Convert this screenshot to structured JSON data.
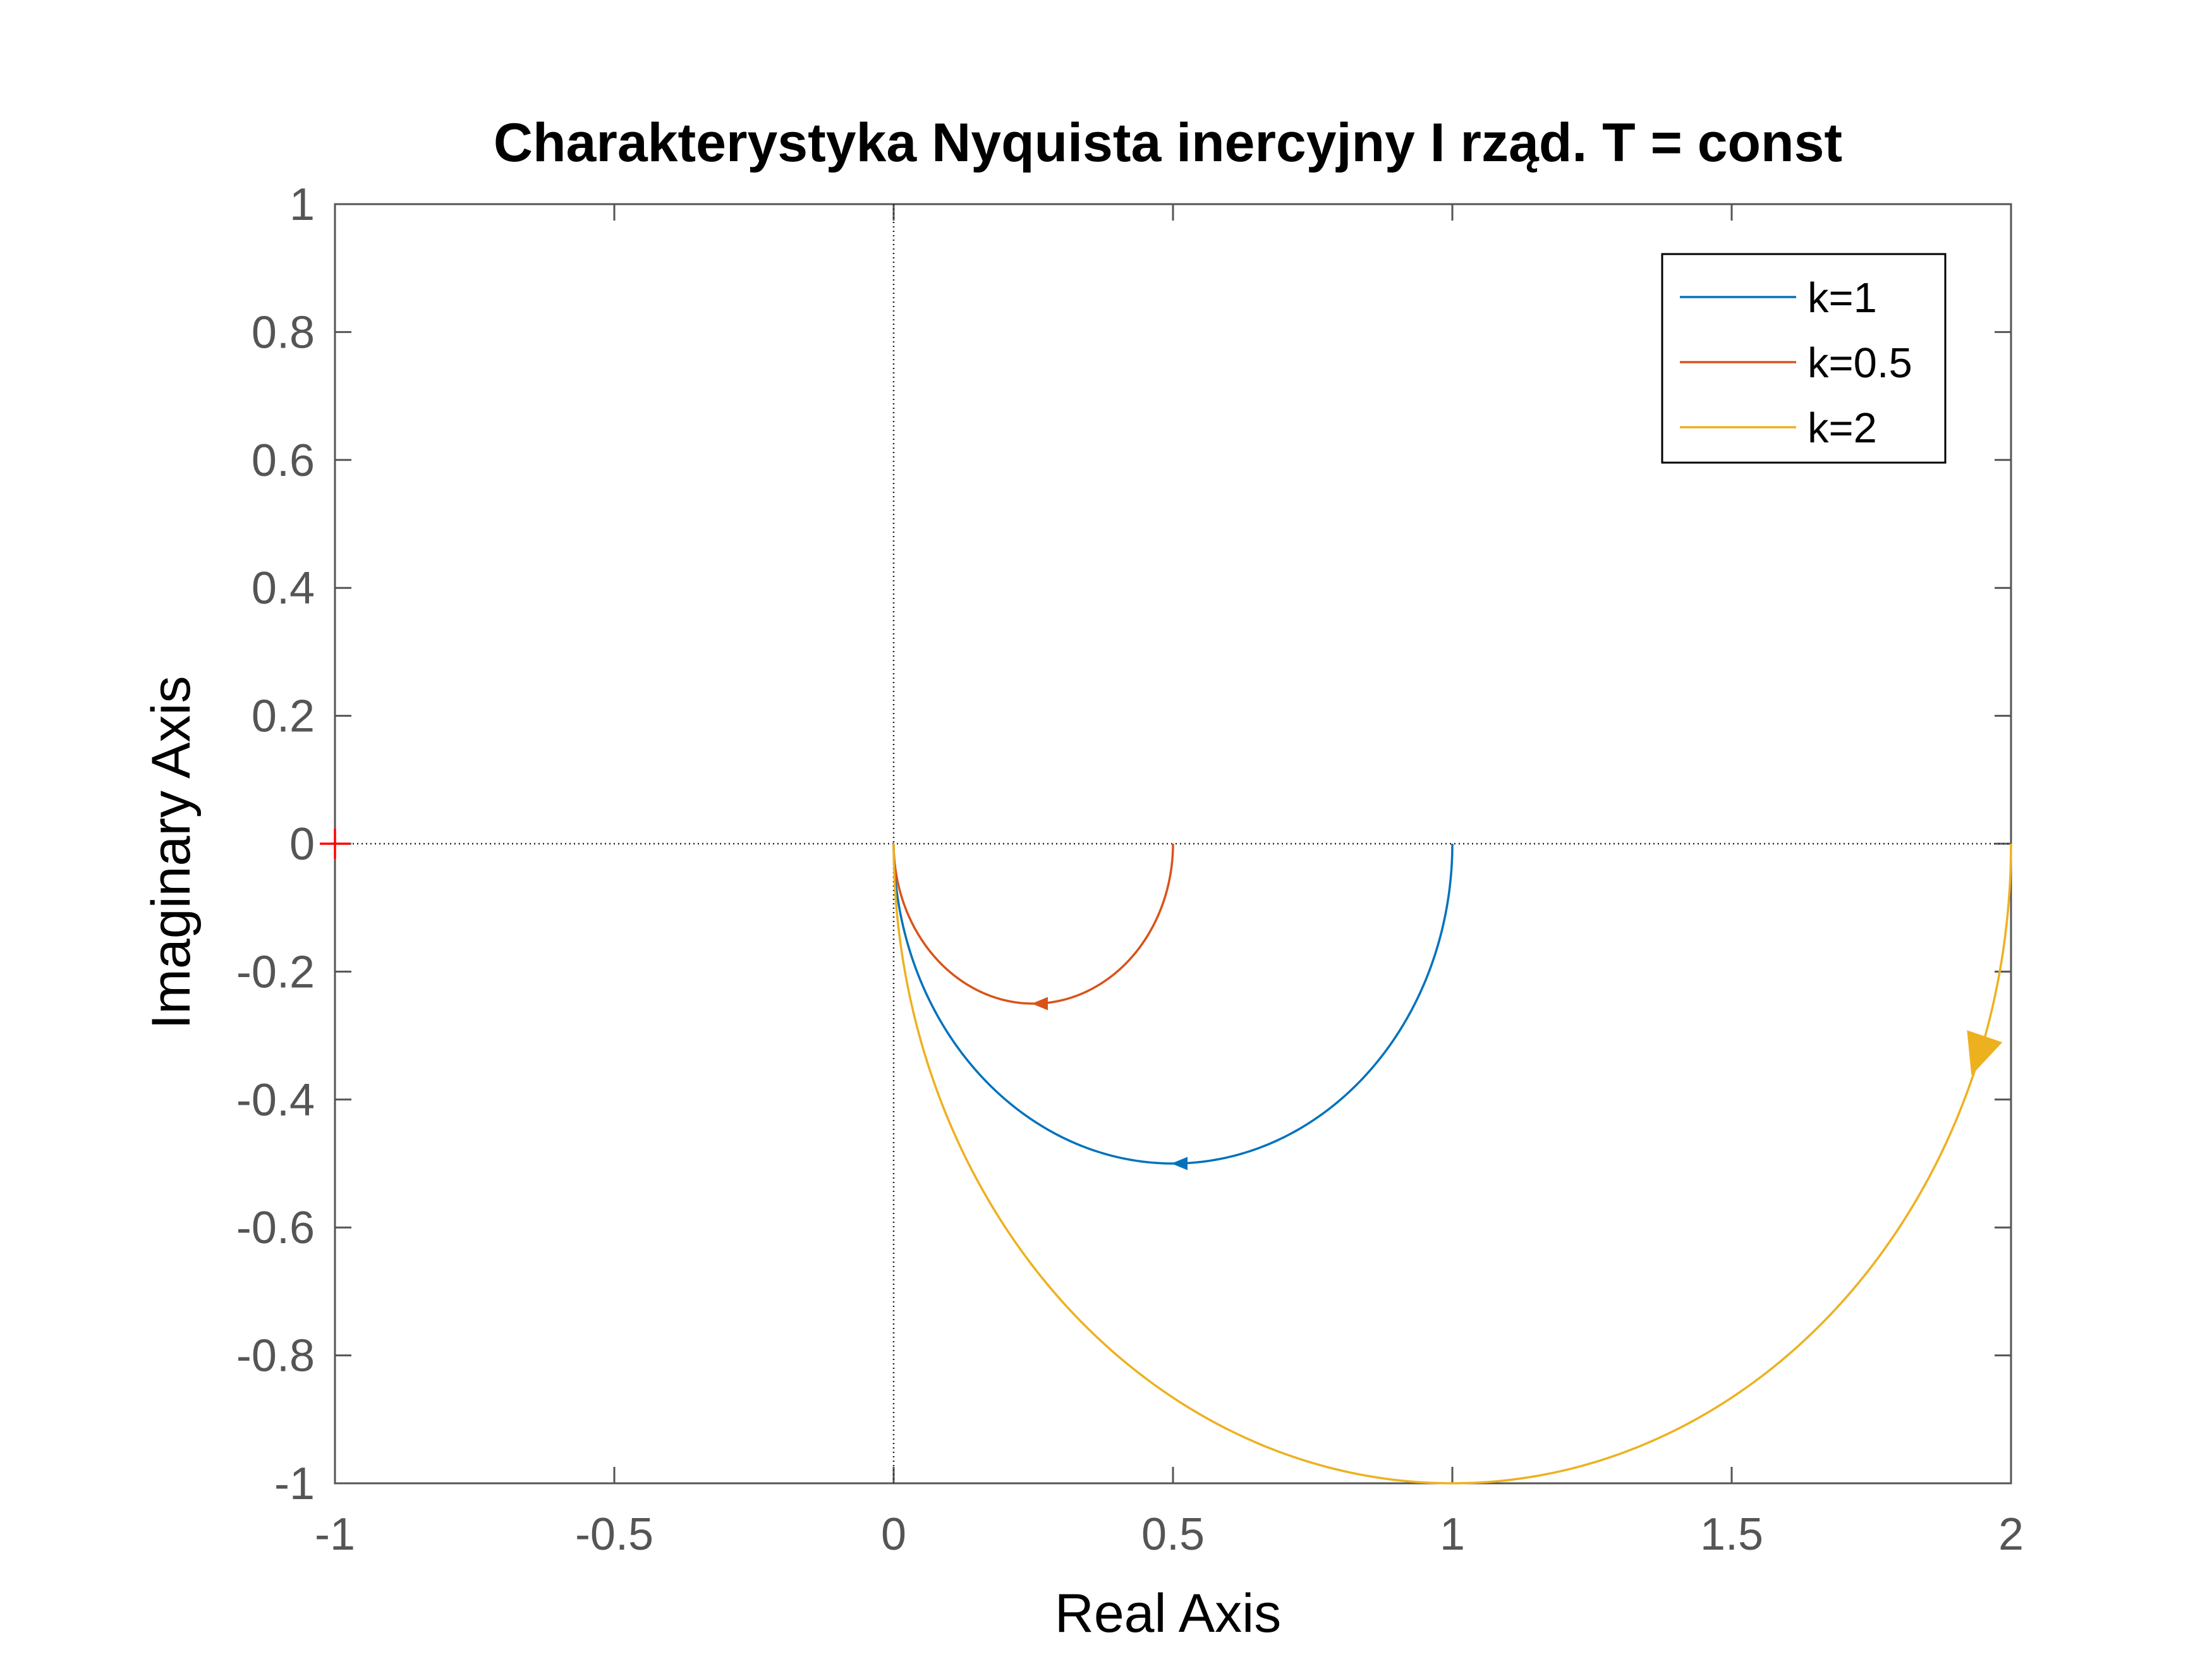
{
  "chart_data": {
    "type": "line",
    "title": "Charakterystyka Nyquista inercyjny I rząd. T = const",
    "xlabel": "Real Axis",
    "ylabel": "Imaginary Axis",
    "xlim": [
      -1,
      2
    ],
    "ylim": [
      -1,
      1
    ],
    "xticks": [
      -1,
      -0.5,
      0,
      0.5,
      1,
      1.5,
      2
    ],
    "xtick_labels": [
      "-1",
      "-0.5",
      "0",
      "0.5",
      "1",
      "1.5",
      "2"
    ],
    "yticks": [
      1,
      0.8,
      0.6,
      0.4,
      0.2,
      0,
      -0.2,
      -0.4,
      -0.6,
      -0.8,
      -1
    ],
    "ytick_labels": [
      "1",
      "0.8",
      "0.6",
      "0.4",
      "0.2",
      "0",
      "-0.2",
      "-0.4",
      "-0.6",
      "-0.8",
      "-1"
    ],
    "grid": false,
    "legend_position": "top-right",
    "critical_point": {
      "x": -1,
      "y": 0,
      "marker": "+",
      "color": "#ff0000"
    },
    "series": [
      {
        "name": "k=1",
        "k": 1,
        "color": "#0072bd",
        "curve": "semicircle",
        "center": [
          0.5,
          0
        ],
        "radius": 0.5,
        "arrow_at": [
          0.5,
          -0.5
        ]
      },
      {
        "name": "k=0.5",
        "k": 0.5,
        "color": "#d95319",
        "curve": "semicircle",
        "center": [
          0.25,
          0
        ],
        "radius": 0.25,
        "arrow_at": [
          0.25,
          -0.25
        ]
      },
      {
        "name": "k=2",
        "k": 2,
        "color": "#edb120",
        "curve": "semicircle",
        "center": [
          1,
          0
        ],
        "radius": 1,
        "arrow_at": [
          1.93,
          -0.36
        ]
      }
    ]
  }
}
